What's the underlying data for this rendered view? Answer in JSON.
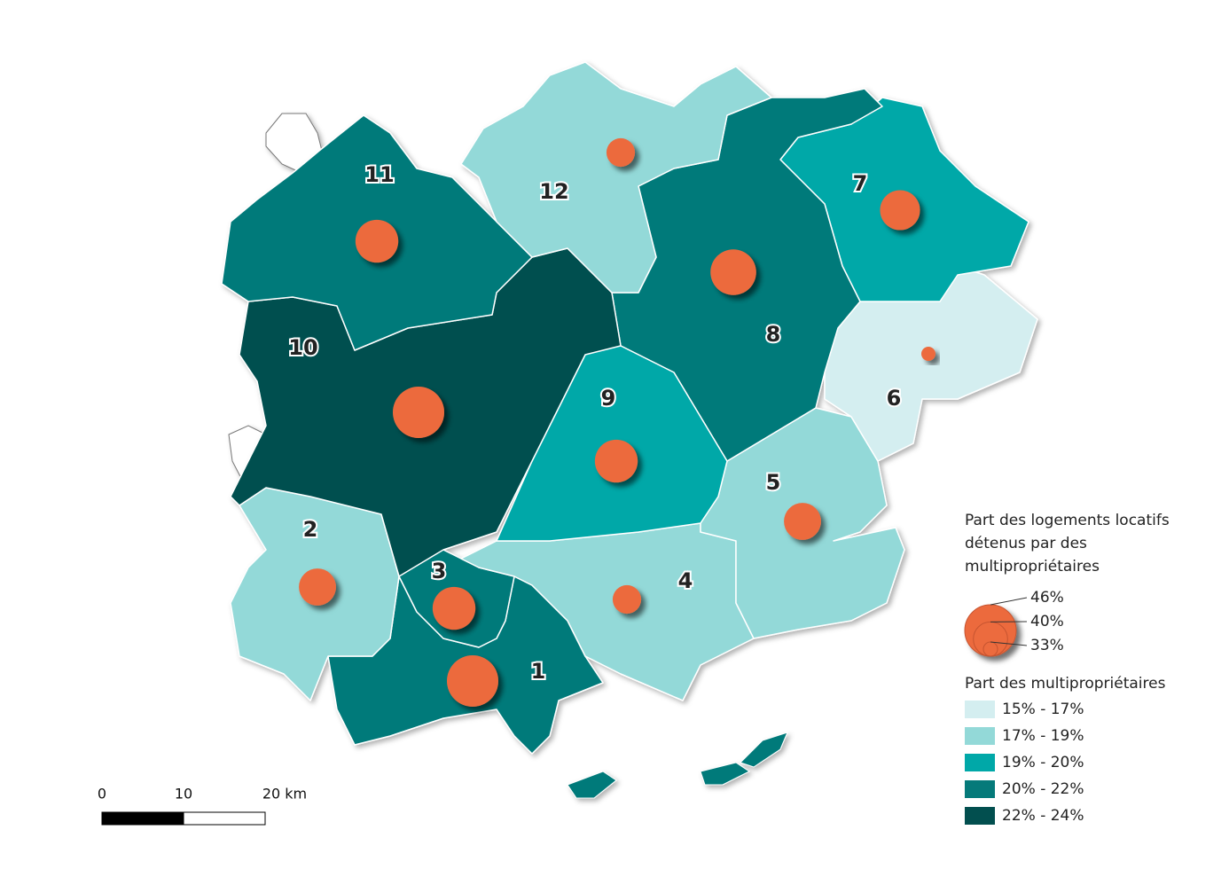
{
  "regions": [
    {
      "label": "1",
      "class": 3,
      "value": 46
    },
    {
      "label": "2",
      "class": 1,
      "value": 41
    },
    {
      "label": "3",
      "class": 3,
      "value": 43
    },
    {
      "label": "4",
      "class": 1,
      "value": 38
    },
    {
      "label": "5",
      "class": 1,
      "value": 41
    },
    {
      "label": "6",
      "class": 0,
      "value": 33
    },
    {
      "label": "7",
      "class": 2,
      "value": 42
    },
    {
      "label": "8",
      "class": 3,
      "value": 44
    },
    {
      "label": "9",
      "class": 2,
      "value": 43
    },
    {
      "label": "10",
      "class": 4,
      "value": 46
    },
    {
      "label": "11",
      "class": 3,
      "value": 43
    },
    {
      "label": "12",
      "class": 1,
      "value": 38
    }
  ],
  "circle_color": "#ec6b3e",
  "size_legend": {
    "title_lines": [
      "Part des logements locatifs",
      "détenus par des",
      "multipropriétaires"
    ],
    "items": [
      {
        "value": 46,
        "label": "46%"
      },
      {
        "value": 40,
        "label": "40%"
      },
      {
        "value": 33,
        "label": "33%"
      }
    ]
  },
  "class_legend": {
    "title": "Part des multipropriétaires",
    "classes": [
      {
        "label": "15% - 17%",
        "color": "#d4eef0"
      },
      {
        "label": "17% - 19%",
        "color": "#93d9d8"
      },
      {
        "label": "19% - 20%",
        "color": "#00a8a8"
      },
      {
        "label": "20% - 22%",
        "color": "#057a7a"
      },
      {
        "label": "22% - 24%",
        "color": "#024f4f"
      }
    ]
  },
  "scale_bar": {
    "labels": [
      "0",
      "10",
      "20 km"
    ]
  }
}
